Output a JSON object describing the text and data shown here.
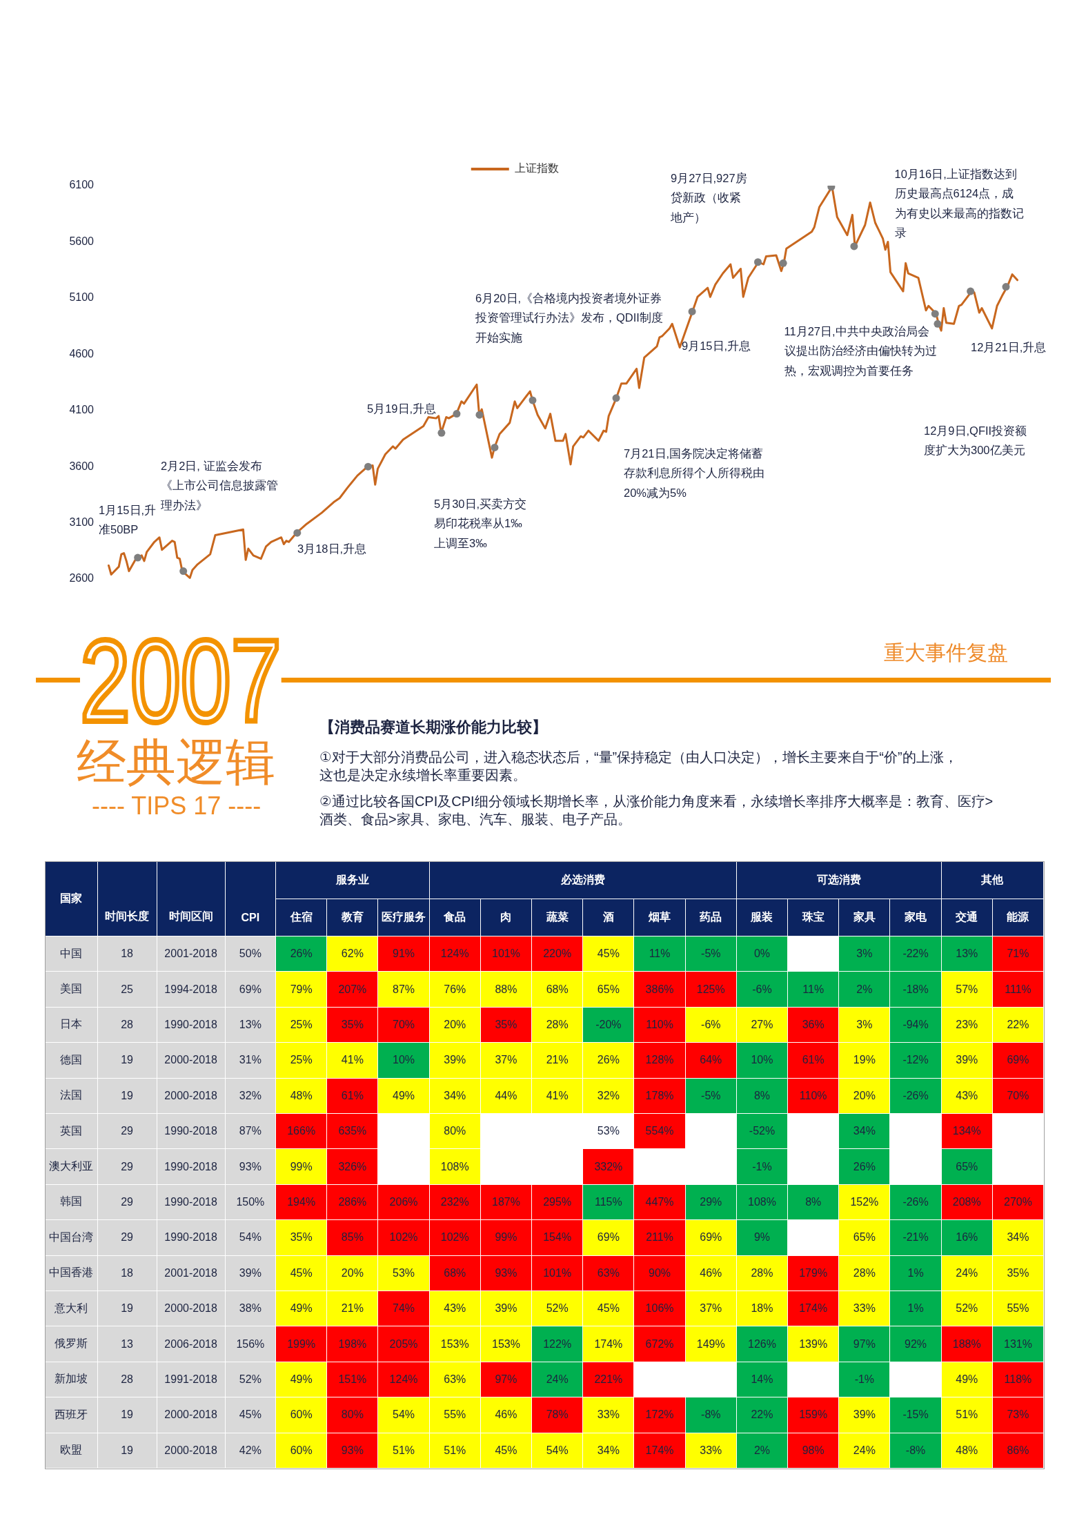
{
  "chart_data": [
    {
      "type": "line",
      "legend": "top",
      "tick_labels": "y",
      "ylim": [
        2600,
        6100
      ],
      "yticks": [
        2600,
        3100,
        3600,
        4100,
        4600,
        5100,
        5600,
        6100
      ],
      "categories": [
        null,
        null,
        null,
        null,
        null,
        null,
        null,
        null,
        null,
        null,
        null,
        null,
        null,
        null,
        null,
        null,
        null,
        null,
        null,
        null,
        null,
        null,
        null,
        null,
        null,
        null,
        null,
        null,
        null,
        null,
        null,
        null,
        null,
        null,
        null,
        null,
        null,
        null,
        null,
        null,
        null,
        null,
        null,
        null,
        null,
        null,
        null,
        null,
        null,
        null,
        null,
        null,
        null,
        null,
        null,
        null,
        null,
        null,
        null,
        null,
        null,
        null,
        null,
        null,
        null,
        null,
        null,
        null,
        null,
        null,
        null,
        null,
        null,
        null,
        null,
        null,
        null,
        null,
        null,
        null,
        null,
        null,
        null,
        null,
        null,
        null,
        null,
        null,
        null,
        null,
        null,
        null,
        null,
        null,
        null,
        null,
        null,
        null,
        null,
        null,
        null,
        null,
        null,
        null,
        null,
        null,
        null,
        null,
        null,
        null,
        null,
        null,
        null,
        null,
        null,
        null,
        null,
        null,
        null,
        null,
        null,
        null,
        null,
        null,
        null,
        null,
        null,
        null,
        null,
        null,
        null,
        null,
        null,
        null,
        null,
        null,
        null,
        null,
        null,
        null,
        null,
        null,
        null,
        null,
        null,
        null,
        null,
        null,
        null,
        null,
        null,
        null,
        null,
        null,
        null,
        null,
        null,
        null,
        null,
        null,
        null,
        null,
        null,
        null,
        null,
        null,
        null,
        null,
        null,
        null,
        null,
        null,
        null,
        null,
        null,
        null,
        null,
        null,
        null,
        null,
        null,
        null,
        null,
        null,
        null,
        null,
        null,
        null,
        null,
        null,
        null,
        null,
        null,
        null,
        null,
        null,
        null,
        null,
        null,
        null,
        null,
        null,
        null,
        null,
        null,
        null,
        null,
        null,
        null,
        null,
        null,
        null,
        null,
        null,
        null,
        null,
        null,
        null,
        null,
        null,
        null,
        null,
        null,
        null,
        null,
        null,
        null,
        null,
        null,
        null,
        null,
        null,
        null,
        null,
        null,
        null,
        null,
        null,
        null,
        null,
        null,
        null,
        null,
        null,
        null,
        null,
        null,
        null,
        null,
        null,
        null,
        null,
        null,
        null,
        null,
        null,
        null,
        null,
        null,
        null,
        null,
        null,
        null,
        null,
        null,
        null,
        null,
        null,
        null,
        null,
        null,
        null,
        null,
        null,
        null,
        null,
        null,
        null,
        null,
        null,
        null,
        null,
        null,
        null,
        null,
        null,
        null,
        null,
        null,
        null,
        null,
        null,
        null,
        null,
        null,
        null,
        null,
        null,
        null,
        null,
        null,
        null,
        null,
        null,
        null,
        null,
        null,
        null,
        null,
        null,
        null,
        null,
        null,
        null,
        null,
        null,
        null,
        null,
        null,
        null,
        null,
        null,
        null,
        null,
        null,
        null,
        null,
        null,
        null,
        null,
        null,
        null,
        null,
        null,
        null,
        null,
        null,
        null,
        null,
        null,
        null,
        null,
        null,
        null,
        null,
        null,
        null,
        null,
        null,
        null,
        null,
        null,
        null,
        null,
        null,
        null,
        null,
        null,
        null
      ],
      "series": [
        {
          "name": "上证指数",
          "color": "#c8671e",
          "values": [
            2720,
            2640,
            null,
            null,
            2710,
            2820,
            2830,
            2760,
            2670,
            null,
            null,
            2790,
            null,
            2810,
            2760,
            2840,
            null,
            null,
            2930,
            null,
            2970,
            2860,
            null,
            null,
            null,
            2940,
            2930,
            2790,
            2780,
            2670,
            null,
            null,
            2610,
            2680,
            null,
            2730,
            null,
            null,
            null,
            null,
            2820,
            null,
            2990,
            null,
            null,
            null,
            null,
            null,
            null,
            null,
            null,
            null,
            null,
            3040,
            2770,
            2870,
            null,
            2810,
            null,
            null,
            2780,
            null,
            2890,
            null,
            2930,
            null,
            null,
            null,
            2970,
            2910,
            2940,
            2930,
            null,
            null,
            3010,
            null,
            null,
            3070,
            3090,
            null,
            null,
            null,
            null,
            null,
            3190,
            null,
            null,
            null,
            null,
            3290,
            null,
            3320,
            null,
            null,
            3410,
            null,
            null,
            null,
            3520,
            3540,
            null,
            null,
            3600,
            null,
            3610,
            3440,
            3580,
            null,
            null,
            3710,
            null,
            null,
            3780,
            3760,
            null,
            null,
            3840,
            null,
            null,
            null,
            null,
            null,
            null,
            null,
            3960,
            null,
            4040,
            null,
            null,
            4030,
            4050,
            3900,
            null,
            4040,
            4030,
            null,
            null,
            4070,
            null,
            4180,
            4160,
            null,
            null,
            null,
            null,
            4330,
            4060,
            4110,
            null,
            null,
            null,
            3680,
            3770,
            null,
            3890,
            null,
            null,
            null,
            3990,
            null,
            4180,
            4120,
            null,
            null,
            null,
            null,
            4270,
            4190,
            null,
            4060,
            null,
            null,
            3940,
            null,
            4070,
            null,
            3830,
            null,
            null,
            3830,
            3890,
            null,
            3620,
            3780,
            null,
            null,
            3870,
            3860,
            null,
            3920,
            null,
            null,
            null,
            3830,
            null,
            3920,
            3910,
            4050,
            null,
            null,
            4210,
            null,
            4340,
            null,
            4340,
            null,
            null,
            null,
            4470,
            4300,
            null,
            4570,
            null,
            null,
            null,
            null,
            4670,
            4750,
            4760,
            null,
            null,
            4830,
            4870,
            null,
            null,
            4660,
            null,
            null,
            null,
            null,
            4980,
            null,
            5110,
            null,
            null,
            null,
            5190,
            5110,
            null,
            5220,
            null,
            null,
            5320,
            null,
            null,
            5400,
            5280,
            null,
            null,
            5360,
            5110,
            null,
            5280,
            null,
            null,
            null,
            5420,
            null,
            5400,
            5470,
            null,
            null,
            null,
            5480,
            null,
            5340,
            5410,
            5540,
            null,
            null,
            null,
            null,
            null,
            null,
            null,
            null,
            null,
            5690,
            5730,
            null,
            5910,
            null,
            null,
            null,
            null,
            6090,
            null,
            5820,
            null,
            null,
            null,
            5660,
            null,
            5840,
            5560,
            null,
            null,
            null,
            5750,
            null,
            5950,
            null,
            5770,
            null,
            null,
            5630,
            5530,
            5600,
            5330,
            null,
            null,
            null,
            null,
            5160,
            5410,
            5320,
            null,
            null,
            null,
            5280,
            null,
            null,
            4990,
            5030,
            null,
            null,
            4960,
            4870,
            4810,
            5010,
            4880,
            null,
            null,
            4870,
            null,
            5030,
            5040,
            null,
            null,
            null,
            5160,
            5150,
            null,
            4970,
            5010,
            null,
            null,
            null,
            4830,
            null,
            5030,
            null,
            5120,
            null,
            5200,
            null,
            5310,
            null,
            5260
          ]
        },
        {
          "type": "scatter",
          "marker": "circle",
          "color": "#7f7f7f",
          "values": [
            null,
            null,
            null,
            null,
            null,
            null,
            null,
            null,
            null,
            null,
            null,
            2790,
            null,
            null,
            null,
            null,
            null,
            null,
            null,
            null,
            null,
            null,
            null,
            null,
            null,
            null,
            null,
            null,
            null,
            2670,
            null,
            null,
            null,
            null,
            null,
            null,
            null,
            null,
            null,
            null,
            null,
            null,
            null,
            null,
            null,
            null,
            null,
            null,
            null,
            null,
            null,
            null,
            null,
            null,
            null,
            null,
            null,
            null,
            null,
            null,
            null,
            null,
            null,
            null,
            null,
            null,
            null,
            null,
            null,
            null,
            null,
            null,
            null,
            null,
            3010,
            null,
            null,
            null,
            null,
            null,
            null,
            null,
            null,
            null,
            null,
            null,
            null,
            null,
            null,
            null,
            null,
            null,
            null,
            null,
            null,
            null,
            null,
            null,
            null,
            null,
            null,
            null,
            3600,
            null,
            null,
            null,
            null,
            null,
            null,
            null,
            null,
            null,
            null,
            null,
            null,
            null,
            null,
            null,
            null,
            null,
            null,
            null,
            null,
            null,
            null,
            null,
            null,
            null,
            null,
            null,
            null,
            3900,
            null,
            null,
            null,
            null,
            null,
            4070,
            null,
            null,
            null,
            null,
            null,
            null,
            null,
            null,
            4060,
            null,
            null,
            null,
            null,
            null,
            3770,
            null,
            null,
            null,
            null,
            null,
            null,
            null,
            null,
            null,
            null,
            null,
            null,
            null,
            null,
            4190,
            null,
            null,
            null,
            null,
            null,
            null,
            null,
            null,
            null,
            null,
            null,
            null,
            null,
            null,
            null,
            null,
            null,
            null,
            null,
            null,
            null,
            null,
            null,
            null,
            null,
            null,
            null,
            null,
            null,
            null,
            null,
            null,
            4210,
            null,
            null,
            null,
            null,
            null,
            null,
            null,
            null,
            null,
            null,
            null,
            null,
            null,
            null,
            null,
            null,
            null,
            null,
            null,
            null,
            null,
            null,
            null,
            null,
            null,
            null,
            null,
            null,
            null,
            4980,
            null,
            null,
            null,
            null,
            null,
            null,
            null,
            null,
            null,
            null,
            null,
            null,
            null,
            null,
            null,
            null,
            null,
            null,
            null,
            null,
            null,
            null,
            null,
            null,
            null,
            5420,
            null,
            null,
            null,
            null,
            null,
            null,
            null,
            null,
            null,
            5410,
            null,
            null,
            null,
            null,
            null,
            null,
            null,
            null,
            null,
            null,
            null,
            null,
            null,
            null,
            null,
            null,
            null,
            null,
            6090,
            null,
            null,
            null,
            null,
            null,
            null,
            null,
            null,
            5560,
            null,
            null,
            null,
            null,
            null,
            null,
            null,
            null,
            null,
            null,
            null,
            null,
            null,
            null,
            null,
            null,
            null,
            null,
            null,
            null,
            null,
            null,
            null,
            null,
            null,
            null,
            null,
            null,
            null,
            null,
            null,
            4960,
            4870,
            null,
            null,
            null,
            null,
            null,
            null,
            null,
            null,
            null,
            null,
            null,
            null,
            5160,
            null,
            null,
            null,
            null,
            null,
            null,
            null,
            null,
            null,
            null,
            null,
            null,
            null,
            5200,
            null,
            null,
            null,
            null
          ]
        }
      ],
      "annotations": [
        "1月15日,升准50BP",
        "2月2日, 证监会发布《上市公司信息披露管理办法》",
        "3月18日,升息",
        "5月19日,升息",
        "5月30日,买卖方交易印花税率从1‰上调至3‰",
        "6月20日,《合格境内投资者境外证券投资管理试行办法》发布，QDII制度开始实施",
        "7月21日,国务院决定将储蓄存款利息所得个人所得税由20%减为5%",
        "9月15日,升息",
        "9月27日,927房贷新政（收紧地产）",
        "10月16日,上证指数达到历史最高点6124点，成为有史以来最高的指数记录",
        "11月27日,中共中央政治局会议提出防治经济由偏快转为过热，宏观调控为首要任务",
        "12月9日,QFII投资额度扩大为300亿美元",
        "12月21日,升息"
      ]
    },
    {
      "type": "other",
      "title": "2007",
      "subtitle": "经典逻辑",
      "annotations": [
        "---- TIPS 17 ----",
        "重大事件复盘",
        "【消费品赛道长期涨价能力比较】",
        "①对于大部分消费品公司，进入稳态状态后，“量”保持稳定（由人口决定），增长主要来自于“价”的上涨，这也是决定永续增长率重要因素。",
        "②通过比较各国CPI及CPI细分领域长期增长率，从涨价能力角度来看，永续增长率排序大概率是：教育、医疗>酒类、食品>家具、家电、汽车、服装、电子产品。"
      ]
    },
    {
      "type": "heatmap",
      "ylabel": "国家",
      "annotations": [
        "服务业",
        "必选消费",
        "可选消费",
        "其他"
      ],
      "categories": [
        "时间长度",
        "时间区间",
        "CPI",
        "住宿",
        "教育",
        "医疗服务",
        "食品",
        "肉",
        "蔬菜",
        "酒",
        "烟草",
        "药品",
        "服装",
        "珠宝",
        "家具",
        "家电",
        "交通",
        "能源"
      ],
      "y_categories": [
        "中国",
        "美国",
        "日本",
        "德国",
        "法国",
        "英国",
        "澳大利亚",
        "韩国",
        "中国台湾",
        "中国香港",
        "意大利",
        "俄罗斯",
        "新加坡",
        "西班牙",
        "欧盟"
      ],
      "cells": [
        [
          18,
          null,
          50,
          26,
          62,
          91,
          124,
          101,
          220,
          45,
          11,
          -5,
          0,
          null,
          3,
          -22,
          13,
          71
        ],
        [
          25,
          null,
          69,
          79,
          207,
          87,
          76,
          88,
          68,
          65,
          386,
          125,
          -6,
          11,
          2,
          -18,
          57,
          111
        ],
        [
          28,
          null,
          13,
          25,
          35,
          70,
          20,
          35,
          28,
          -20,
          110,
          -6,
          27,
          36,
          3,
          -94,
          23,
          22
        ],
        [
          19,
          null,
          31,
          25,
          41,
          10,
          39,
          37,
          21,
          26,
          128,
          64,
          10,
          61,
          19,
          -12,
          39,
          69
        ],
        [
          19,
          null,
          32,
          48,
          61,
          49,
          34,
          44,
          41,
          32,
          178,
          -5,
          8,
          110,
          20,
          -26,
          43,
          70
        ],
        [
          29,
          null,
          87,
          166,
          635,
          null,
          80,
          null,
          null,
          53,
          554,
          null,
          -52,
          null,
          34,
          null,
          134,
          null
        ],
        [
          29,
          null,
          93,
          99,
          326,
          null,
          108,
          null,
          null,
          332,
          null,
          null,
          -1,
          null,
          26,
          null,
          65,
          null
        ],
        [
          29,
          null,
          150,
          194,
          286,
          206,
          232,
          187,
          295,
          115,
          447,
          29,
          108,
          8,
          152,
          -26,
          208,
          270
        ],
        [
          29,
          null,
          54,
          35,
          85,
          102,
          102,
          99,
          154,
          69,
          211,
          69,
          9,
          null,
          65,
          -21,
          16,
          34
        ],
        [
          18,
          null,
          39,
          45,
          20,
          53,
          68,
          93,
          101,
          63,
          90,
          46,
          28,
          179,
          28,
          1,
          24,
          35
        ],
        [
          19,
          null,
          38,
          49,
          21,
          74,
          43,
          39,
          52,
          45,
          106,
          37,
          18,
          174,
          33,
          1,
          52,
          55
        ],
        [
          13,
          null,
          156,
          199,
          198,
          205,
          153,
          153,
          122,
          174,
          672,
          149,
          126,
          139,
          97,
          92,
          188,
          131
        ],
        [
          28,
          null,
          52,
          49,
          151,
          124,
          63,
          97,
          24,
          221,
          null,
          null,
          14,
          null,
          -1,
          null,
          49,
          118
        ],
        [
          19,
          null,
          45,
          60,
          80,
          54,
          55,
          46,
          78,
          33,
          172,
          -8,
          22,
          159,
          39,
          -15,
          51,
          73
        ],
        [
          19,
          null,
          42,
          60,
          93,
          51,
          51,
          45,
          54,
          34,
          174,
          33,
          2,
          98,
          24,
          -8,
          48,
          86
        ]
      ],
      "cell_labels": [
        [
          "18",
          "2001-2018",
          "50%",
          "26%",
          "62%",
          "91%",
          "124%",
          "101%",
          "220%",
          "45%",
          "11%",
          "-5%",
          "0%",
          null,
          "3%",
          "-22%",
          "13%",
          "71%"
        ],
        [
          "25",
          "1994-2018",
          "69%",
          "79%",
          "207%",
          "87%",
          "76%",
          "88%",
          "68%",
          "65%",
          "386%",
          "125%",
          "-6%",
          "11%",
          "2%",
          "-18%",
          "57%",
          "111%"
        ],
        [
          "28",
          "1990-2018",
          "13%",
          "25%",
          "35%",
          "70%",
          "20%",
          "35%",
          "28%",
          "-20%",
          "110%",
          "-6%",
          "27%",
          "36%",
          "3%",
          "-94%",
          "23%",
          "22%"
        ],
        [
          "19",
          "2000-2018",
          "31%",
          "25%",
          "41%",
          "10%",
          "39%",
          "37%",
          "21%",
          "26%",
          "128%",
          "64%",
          "10%",
          "61%",
          "19%",
          "-12%",
          "39%",
          "69%"
        ],
        [
          "19",
          "2000-2018",
          "32%",
          "48%",
          "61%",
          "49%",
          "34%",
          "44%",
          "41%",
          "32%",
          "178%",
          "-5%",
          "8%",
          "110%",
          "20%",
          "-26%",
          "43%",
          "70%"
        ],
        [
          "29",
          "1990-2018",
          "87%",
          "166%",
          "635%",
          null,
          "80%",
          null,
          null,
          "53%",
          "554%",
          null,
          "-52%",
          null,
          "34%",
          null,
          "134%",
          null
        ],
        [
          "29",
          "1990-2018",
          "93%",
          "99%",
          "326%",
          null,
          "108%",
          null,
          null,
          "332%",
          null,
          null,
          "-1%",
          null,
          "26%",
          null,
          "65%",
          null
        ],
        [
          "29",
          "1990-2018",
          "150%",
          "194%",
          "286%",
          "206%",
          "232%",
          "187%",
          "295%",
          "115%",
          "447%",
          "29%",
          "108%",
          "8%",
          "152%",
          "-26%",
          "208%",
          "270%"
        ],
        [
          "29",
          "1990-2018",
          "54%",
          "35%",
          "85%",
          "102%",
          "102%",
          "99%",
          "154%",
          "69%",
          "211%",
          "69%",
          "9%",
          null,
          "65%",
          "-21%",
          "16%",
          "34%"
        ],
        [
          "18",
          "2001-2018",
          "39%",
          "45%",
          "20%",
          "53%",
          "68%",
          "93%",
          "101%",
          "63%",
          "90%",
          "46%",
          "28%",
          "179%",
          "28%",
          "1%",
          "24%",
          "35%"
        ],
        [
          "19",
          "2000-2018",
          "38%",
          "49%",
          "21%",
          "74%",
          "43%",
          "39%",
          "52%",
          "45%",
          "106%",
          "37%",
          "18%",
          "174%",
          "33%",
          "1%",
          "52%",
          "55%"
        ],
        [
          "13",
          "2006-2018",
          "156%",
          "199%",
          "198%",
          "205%",
          "153%",
          "153%",
          "122%",
          "174%",
          "672%",
          "149%",
          "126%",
          "139%",
          "97%",
          "92%",
          "188%",
          "131%"
        ],
        [
          "28",
          "1991-2018",
          "52%",
          "49%",
          "151%",
          "124%",
          "63%",
          "97%",
          "24%",
          "221%",
          null,
          null,
          "14%",
          null,
          "-1%",
          null,
          "49%",
          "118%"
        ],
        [
          "19",
          "2000-2018",
          "45%",
          "60%",
          "80%",
          "54%",
          "55%",
          "46%",
          "78%",
          "33%",
          "172%",
          "-8%",
          "22%",
          "159%",
          "39%",
          "-15%",
          "51%",
          "73%"
        ],
        [
          "19",
          "2000-2018",
          "42%",
          "60%",
          "93%",
          "51%",
          "51%",
          "45%",
          "54%",
          "34%",
          "174%",
          "33%",
          "2%",
          "98%",
          "24%",
          "-8%",
          "48%",
          "86%"
        ]
      ],
      "colors": [
        [
          "#d9d9d9",
          "#d9d9d9",
          "#d9d9d9",
          "#00b050",
          "#ffff00",
          "#ff0000",
          "#ff0000",
          "#ff0000",
          "#ff0000",
          "#ffff00",
          "#00b050",
          "#00b050",
          "#00b050",
          null,
          "#00b050",
          "#00b050",
          "#00b050",
          "#ff0000"
        ],
        [
          "#d9d9d9",
          "#d9d9d9",
          "#d9d9d9",
          "#ffff00",
          "#ff0000",
          "#ffff00",
          "#ffff00",
          "#ffff00",
          "#ffff00",
          "#ffff00",
          "#ff0000",
          "#ff0000",
          "#00b050",
          "#00b050",
          "#00b050",
          "#00b050",
          "#ffff00",
          "#ff0000"
        ],
        [
          "#d9d9d9",
          "#d9d9d9",
          "#d9d9d9",
          "#ffff00",
          "#ff0000",
          "#ff0000",
          "#ffff00",
          "#ff0000",
          "#ffff00",
          "#00b050",
          "#ff0000",
          "#ffff00",
          "#ffff00",
          "#ff0000",
          "#ffff00",
          "#00b050",
          "#ffff00",
          "#ffff00"
        ],
        [
          "#d9d9d9",
          "#d9d9d9",
          "#d9d9d9",
          "#ffff00",
          "#ffff00",
          "#00b050",
          "#ffff00",
          "#ffff00",
          "#ffff00",
          "#ffff00",
          "#ff0000",
          "#ff0000",
          "#00b050",
          "#ff0000",
          "#ffff00",
          "#00b050",
          "#ffff00",
          "#ff0000"
        ],
        [
          "#d9d9d9",
          "#d9d9d9",
          "#d9d9d9",
          "#ffff00",
          "#ff0000",
          "#ffff00",
          "#ffff00",
          "#ffff00",
          "#ffff00",
          "#ffff00",
          "#ff0000",
          "#00b050",
          "#00b050",
          "#ff0000",
          "#ffff00",
          "#00b050",
          "#ffff00",
          "#ff0000"
        ],
        [
          "#d9d9d9",
          "#d9d9d9",
          "#d9d9d9",
          "#ff0000",
          "#ff0000",
          null,
          "#ffff00",
          null,
          null,
          null,
          "#ff0000",
          null,
          "#00b050",
          null,
          "#00b050",
          null,
          "#ff0000",
          null
        ],
        [
          "#d9d9d9",
          "#d9d9d9",
          "#d9d9d9",
          "#ffff00",
          "#ff0000",
          null,
          "#ffff00",
          null,
          null,
          "#ff0000",
          null,
          null,
          "#00b050",
          null,
          "#00b050",
          null,
          "#00b050",
          null
        ],
        [
          "#d9d9d9",
          "#d9d9d9",
          "#d9d9d9",
          "#ff0000",
          "#ff0000",
          "#ff0000",
          "#ff0000",
          "#ff0000",
          "#ff0000",
          "#00b050",
          "#ff0000",
          "#00b050",
          "#00b050",
          "#00b050",
          "#ffff00",
          "#00b050",
          "#ff0000",
          "#ff0000"
        ],
        [
          "#d9d9d9",
          "#d9d9d9",
          "#d9d9d9",
          "#ffff00",
          "#ff0000",
          "#ff0000",
          "#ff0000",
          "#ff0000",
          "#ff0000",
          "#ffff00",
          "#ff0000",
          "#ffff00",
          "#00b050",
          null,
          "#ffff00",
          "#00b050",
          "#00b050",
          "#ffff00"
        ],
        [
          "#d9d9d9",
          "#d9d9d9",
          "#d9d9d9",
          "#ffff00",
          "#ffff00",
          "#ffff00",
          "#ff0000",
          "#ff0000",
          "#ff0000",
          "#ff0000",
          "#ff0000",
          "#ffff00",
          "#ffff00",
          "#ff0000",
          "#ffff00",
          "#00b050",
          "#ffff00",
          "#ffff00"
        ],
        [
          "#d9d9d9",
          "#d9d9d9",
          "#d9d9d9",
          "#ffff00",
          "#ffff00",
          "#ff0000",
          "#ffff00",
          "#ffff00",
          "#ffff00",
          "#ffff00",
          "#ff0000",
          "#ffff00",
          "#ffff00",
          "#ff0000",
          "#ffff00",
          "#00b050",
          "#ffff00",
          "#ffff00"
        ],
        [
          "#d9d9d9",
          "#d9d9d9",
          "#d9d9d9",
          "#ff0000",
          "#ff0000",
          "#ff0000",
          "#ffff00",
          "#ffff00",
          "#00b050",
          "#ffff00",
          "#ff0000",
          "#ffff00",
          "#00b050",
          "#ffff00",
          "#00b050",
          "#00b050",
          "#ff0000",
          "#00b050"
        ],
        [
          "#d9d9d9",
          "#d9d9d9",
          "#d9d9d9",
          "#ffff00",
          "#ff0000",
          "#ff0000",
          "#ffff00",
          "#ff0000",
          "#00b050",
          "#ff0000",
          null,
          null,
          "#00b050",
          null,
          "#00b050",
          null,
          "#ffff00",
          "#ff0000"
        ],
        [
          "#d9d9d9",
          "#d9d9d9",
          "#d9d9d9",
          "#ffff00",
          "#ff0000",
          "#ffff00",
          "#ffff00",
          "#ffff00",
          "#ff0000",
          "#ffff00",
          "#ff0000",
          "#00b050",
          "#00b050",
          "#ff0000",
          "#ffff00",
          "#00b050",
          "#ffff00",
          "#ff0000"
        ],
        [
          "#d9d9d9",
          "#d9d9d9",
          "#d9d9d9",
          "#ffff00",
          "#ff0000",
          "#ffff00",
          "#ffff00",
          "#ffff00",
          "#ffff00",
          "#ffff00",
          "#ff0000",
          "#ffff00",
          "#00b050",
          "#ff0000",
          "#ffff00",
          "#00b050",
          "#ffff00",
          "#ff0000"
        ]
      ]
    }
  ]
}
